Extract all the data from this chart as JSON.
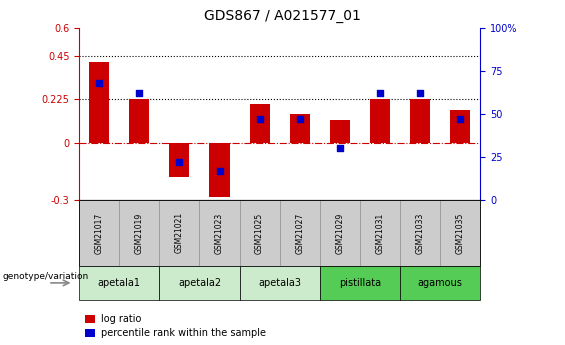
{
  "title": "GDS867 / A021577_01",
  "samples": [
    "GSM21017",
    "GSM21019",
    "GSM21021",
    "GSM21023",
    "GSM21025",
    "GSM21027",
    "GSM21029",
    "GSM21031",
    "GSM21033",
    "GSM21035"
  ],
  "log_ratio": [
    0.42,
    0.225,
    -0.18,
    -0.285,
    0.2,
    0.15,
    0.12,
    0.225,
    0.225,
    0.17
  ],
  "percentile_rank": [
    68,
    62,
    22,
    17,
    47,
    47,
    30,
    62,
    62,
    47
  ],
  "ylim_left": [
    -0.3,
    0.6
  ],
  "ylim_right": [
    0,
    100
  ],
  "yticks_left": [
    -0.3,
    0,
    0.225,
    0.45,
    0.6
  ],
  "yticks_right": [
    0,
    25,
    50,
    75,
    100
  ],
  "dotted_lines": [
    0.225,
    0.45
  ],
  "bar_color": "#cc0000",
  "dot_color": "#0000cc",
  "bar_width": 0.5,
  "groups": [
    {
      "name": "apetala1",
      "start": 0,
      "end": 2,
      "color": "#cceacc"
    },
    {
      "name": "apetala2",
      "start": 2,
      "end": 4,
      "color": "#cceacc"
    },
    {
      "name": "apetala3",
      "start": 4,
      "end": 6,
      "color": "#cceacc"
    },
    {
      "name": "pistillata",
      "start": 6,
      "end": 8,
      "color": "#55cc55"
    },
    {
      "name": "agamous",
      "start": 8,
      "end": 10,
      "color": "#55cc55"
    }
  ],
  "gray_color": "#cccccc",
  "background_color": "#ffffff",
  "legend_log_ratio_label": "log ratio",
  "legend_percentile_label": "percentile rank within the sample",
  "genotype_label": "genotype/variation"
}
